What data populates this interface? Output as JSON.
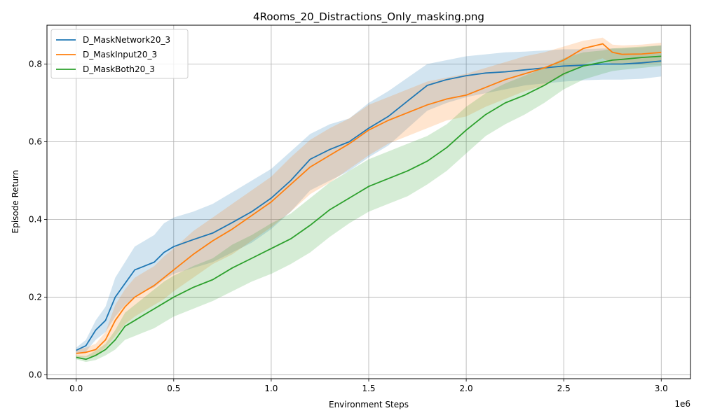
{
  "chart_data": {
    "type": "line",
    "title": "4Rooms_20_Distractions_Only_masking.png",
    "xlabel": "Environment Steps",
    "ylabel": "Episode Return",
    "x_offset_label": "1e6",
    "xlim": [
      -0.15,
      3.15
    ],
    "ylim": [
      -0.01,
      0.9
    ],
    "xticks": [
      0.0,
      0.5,
      1.0,
      1.5,
      2.0,
      2.5,
      3.0
    ],
    "xtick_labels": [
      "0.0",
      "0.5",
      "1.0",
      "1.5",
      "2.0",
      "2.5",
      "3.0"
    ],
    "yticks": [
      0.0,
      0.2,
      0.4,
      0.6,
      0.8
    ],
    "ytick_labels": [
      "0.0",
      "0.2",
      "0.4",
      "0.6",
      "0.8"
    ],
    "grid": true,
    "legend_position": "top-left",
    "x": [
      0.0,
      0.05,
      0.1,
      0.15,
      0.2,
      0.25,
      0.3,
      0.35,
      0.4,
      0.45,
      0.5,
      0.6,
      0.7,
      0.8,
      0.9,
      1.0,
      1.1,
      1.2,
      1.3,
      1.4,
      1.5,
      1.6,
      1.7,
      1.8,
      1.9,
      2.0,
      2.1,
      2.2,
      2.3,
      2.4,
      2.5,
      2.6,
      2.7,
      2.75,
      2.8,
      2.9,
      3.0
    ],
    "series": [
      {
        "name": "D_MaskNetwork20_3",
        "color": "#1f77b4",
        "values": [
          0.063,
          0.075,
          0.115,
          0.14,
          0.2,
          0.235,
          0.27,
          0.28,
          0.29,
          0.315,
          0.33,
          0.348,
          0.365,
          0.392,
          0.42,
          0.455,
          0.5,
          0.555,
          0.58,
          0.6,
          0.635,
          0.665,
          0.705,
          0.745,
          0.76,
          0.77,
          0.777,
          0.78,
          0.785,
          0.79,
          0.795,
          0.797,
          0.8,
          0.8,
          0.8,
          0.803,
          0.808
        ],
        "lower": [
          0.055,
          0.06,
          0.09,
          0.11,
          0.15,
          0.18,
          0.2,
          0.215,
          0.225,
          0.245,
          0.26,
          0.275,
          0.29,
          0.315,
          0.34,
          0.375,
          0.42,
          0.475,
          0.5,
          0.525,
          0.56,
          0.59,
          0.635,
          0.68,
          0.7,
          0.715,
          0.725,
          0.735,
          0.745,
          0.75,
          0.755,
          0.758,
          0.76,
          0.76,
          0.76,
          0.762,
          0.768
        ],
        "upper": [
          0.07,
          0.09,
          0.14,
          0.175,
          0.25,
          0.29,
          0.33,
          0.345,
          0.36,
          0.39,
          0.405,
          0.42,
          0.44,
          0.47,
          0.5,
          0.53,
          0.575,
          0.62,
          0.645,
          0.66,
          0.7,
          0.73,
          0.765,
          0.8,
          0.81,
          0.82,
          0.825,
          0.83,
          0.832,
          0.835,
          0.838,
          0.838,
          0.84,
          0.84,
          0.84,
          0.843,
          0.848
        ]
      },
      {
        "name": "D_MaskInput20_3",
        "color": "#ff7f0e",
        "values": [
          0.055,
          0.058,
          0.065,
          0.09,
          0.14,
          0.175,
          0.2,
          0.215,
          0.23,
          0.25,
          0.27,
          0.31,
          0.345,
          0.375,
          0.41,
          0.445,
          0.49,
          0.535,
          0.565,
          0.595,
          0.63,
          0.655,
          0.675,
          0.695,
          0.71,
          0.72,
          0.74,
          0.76,
          0.775,
          0.79,
          0.81,
          0.84,
          0.852,
          0.83,
          0.825,
          0.826,
          0.83
        ],
        "lower": [
          0.045,
          0.045,
          0.05,
          0.07,
          0.1,
          0.13,
          0.15,
          0.165,
          0.18,
          0.195,
          0.215,
          0.25,
          0.285,
          0.31,
          0.345,
          0.38,
          0.42,
          0.465,
          0.495,
          0.53,
          0.565,
          0.595,
          0.615,
          0.635,
          0.655,
          0.665,
          0.69,
          0.71,
          0.73,
          0.745,
          0.77,
          0.8,
          0.815,
          0.8,
          0.798,
          0.8,
          0.803
        ],
        "upper": [
          0.065,
          0.07,
          0.08,
          0.11,
          0.18,
          0.22,
          0.25,
          0.265,
          0.28,
          0.305,
          0.325,
          0.37,
          0.405,
          0.44,
          0.475,
          0.51,
          0.56,
          0.605,
          0.635,
          0.66,
          0.695,
          0.715,
          0.735,
          0.755,
          0.765,
          0.775,
          0.79,
          0.805,
          0.82,
          0.83,
          0.845,
          0.86,
          0.868,
          0.85,
          0.848,
          0.85,
          0.855
        ]
      },
      {
        "name": "D_MaskBoth20_3",
        "color": "#2ca02c",
        "values": [
          0.045,
          0.04,
          0.05,
          0.065,
          0.09,
          0.125,
          0.14,
          0.155,
          0.17,
          0.185,
          0.2,
          0.225,
          0.245,
          0.275,
          0.3,
          0.325,
          0.35,
          0.385,
          0.425,
          0.455,
          0.485,
          0.505,
          0.525,
          0.55,
          0.585,
          0.63,
          0.67,
          0.7,
          0.72,
          0.745,
          0.775,
          0.795,
          0.805,
          0.81,
          0.812,
          0.817,
          0.82
        ],
        "lower": [
          0.04,
          0.033,
          0.038,
          0.05,
          0.065,
          0.09,
          0.1,
          0.11,
          0.12,
          0.135,
          0.15,
          0.17,
          0.19,
          0.215,
          0.24,
          0.26,
          0.285,
          0.315,
          0.355,
          0.39,
          0.42,
          0.44,
          0.46,
          0.49,
          0.525,
          0.57,
          0.615,
          0.645,
          0.67,
          0.7,
          0.735,
          0.76,
          0.775,
          0.782,
          0.785,
          0.79,
          0.795
        ],
        "upper": [
          0.05,
          0.048,
          0.062,
          0.08,
          0.115,
          0.16,
          0.18,
          0.2,
          0.22,
          0.24,
          0.255,
          0.28,
          0.3,
          0.335,
          0.36,
          0.39,
          0.415,
          0.455,
          0.495,
          0.525,
          0.555,
          0.575,
          0.595,
          0.615,
          0.645,
          0.69,
          0.725,
          0.75,
          0.77,
          0.79,
          0.815,
          0.83,
          0.835,
          0.84,
          0.842,
          0.845,
          0.848
        ]
      }
    ]
  }
}
